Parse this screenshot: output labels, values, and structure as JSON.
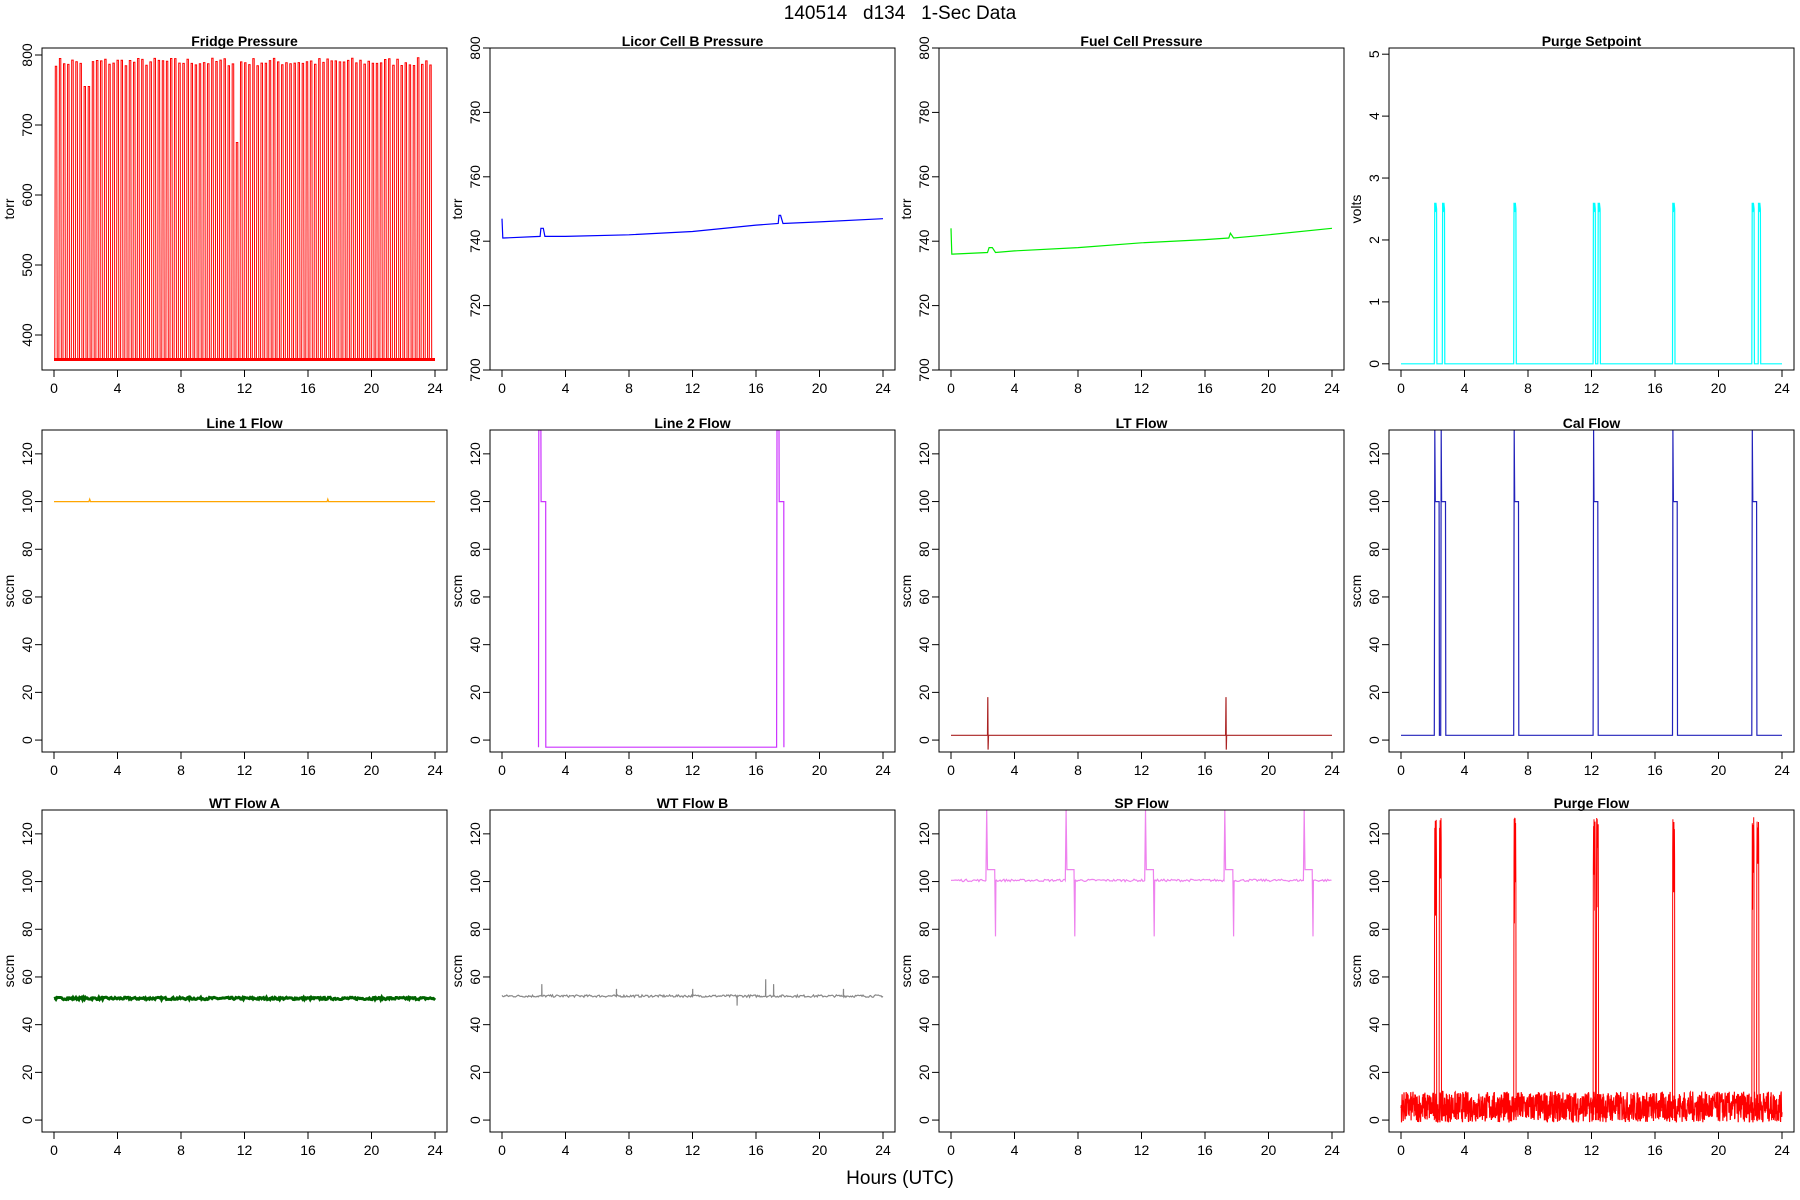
{
  "title": "140514   d134   1-Sec Data",
  "xlabel": "Hours (UTC)",
  "chart_data": [
    {
      "type": "line",
      "title": "Fridge Pressure",
      "ylabel": "torr",
      "xlim": [
        0,
        24
      ],
      "ylim": [
        350,
        810
      ],
      "xticks": [
        0,
        4,
        8,
        12,
        16,
        20,
        24
      ],
      "yticks": [
        400,
        500,
        600,
        700,
        800
      ],
      "color": "#ff0000",
      "series": [
        {
          "pattern": "fridge",
          "base": 365,
          "peak": 790
        }
      ]
    },
    {
      "type": "line",
      "title": "Licor Cell B Pressure",
      "ylabel": "torr",
      "xlim": [
        0,
        24
      ],
      "ylim": [
        700,
        800
      ],
      "xticks": [
        0,
        4,
        8,
        12,
        16,
        20,
        24
      ],
      "yticks": [
        700,
        720,
        740,
        760,
        780,
        800
      ],
      "color": "#0000ff",
      "series": [
        {
          "x": [
            0,
            0.05,
            0.1,
            2.4,
            2.45,
            2.5,
            2.6,
            2.7,
            4,
            8,
            12,
            16,
            17.4,
            17.45,
            17.55,
            17.7,
            20,
            24
          ],
          "y": [
            747,
            741,
            741,
            741.5,
            744,
            744,
            744,
            741.5,
            741.5,
            742,
            743,
            745,
            745.5,
            748,
            748,
            745.5,
            746,
            747
          ]
        }
      ]
    },
    {
      "type": "line",
      "title": "Fuel Cell Pressure",
      "ylabel": "torr",
      "xlim": [
        0,
        24
      ],
      "ylim": [
        700,
        800
      ],
      "xticks": [
        0,
        4,
        8,
        12,
        16,
        20,
        24
      ],
      "yticks": [
        700,
        720,
        740,
        760,
        780,
        800
      ],
      "color": "#00ee00",
      "series": [
        {
          "x": [
            0,
            0.05,
            0.1,
            2.3,
            2.4,
            2.6,
            2.8,
            4,
            8,
            12,
            16,
            17.5,
            17.6,
            17.8,
            20,
            24
          ],
          "y": [
            744,
            736,
            736,
            736.5,
            738,
            738,
            736.5,
            737,
            738,
            739.5,
            740.5,
            741,
            742.5,
            741,
            742,
            744
          ]
        }
      ]
    },
    {
      "type": "line",
      "title": "Purge Setpoint",
      "ylabel": "volts",
      "xlim": [
        0,
        24
      ],
      "ylim": [
        -0.1,
        5.1
      ],
      "xticks": [
        0,
        4,
        8,
        12,
        16,
        20,
        24
      ],
      "yticks": [
        0,
        1,
        2,
        3,
        4,
        5
      ],
      "color": "#00ffff",
      "series": [
        {
          "pattern": "purge",
          "base": 0,
          "peak": 2.55,
          "events": [
            2.1,
            2.6,
            7.1,
            12.1,
            12.4,
            17.1,
            22.1,
            22.5
          ]
        }
      ]
    },
    {
      "type": "line",
      "title": "Line 1 Flow",
      "ylabel": "sccm",
      "xlim": [
        0,
        24
      ],
      "ylim": [
        -5,
        130
      ],
      "xticks": [
        0,
        4,
        8,
        12,
        16,
        20,
        24
      ],
      "yticks": [
        0,
        20,
        40,
        60,
        80,
        100,
        120
      ],
      "color": "#ffa500",
      "series": [
        {
          "x": [
            0,
            2.2,
            2.25,
            2.3,
            17.2,
            17.25,
            17.3,
            24
          ],
          "y": [
            100,
            100,
            101,
            100,
            100,
            101,
            100,
            100
          ]
        }
      ]
    },
    {
      "type": "line",
      "title": "Line 2 Flow",
      "ylabel": "sccm",
      "xlim": [
        0,
        24
      ],
      "ylim": [
        -5,
        130
      ],
      "xticks": [
        0,
        4,
        8,
        12,
        16,
        20,
        24
      ],
      "yticks": [
        0,
        20,
        40,
        60,
        80,
        100,
        120
      ],
      "color": "#cc33ff",
      "series": [
        {
          "x": [
            2.3,
            2.32,
            2.45,
            2.46,
            2.75,
            2.76,
            17.3,
            17.32,
            17.45,
            17.46,
            17.75,
            17.76
          ],
          "y": [
            -3,
            130,
            130,
            100,
            100,
            -3,
            -3,
            130,
            130,
            100,
            100,
            -3
          ]
        }
      ]
    },
    {
      "type": "line",
      "title": "LT Flow",
      "ylabel": "sccm",
      "xlim": [
        0,
        24
      ],
      "ylim": [
        -5,
        130
      ],
      "xticks": [
        0,
        4,
        8,
        12,
        16,
        20,
        24
      ],
      "yticks": [
        0,
        20,
        40,
        60,
        80,
        100,
        120
      ],
      "color": "#aa2222",
      "series": [
        {
          "x": [
            0,
            2.3,
            2.32,
            2.34,
            2.36,
            17.3,
            17.32,
            17.34,
            17.36,
            24
          ],
          "y": [
            2,
            2,
            18,
            -4,
            2,
            2,
            18,
            -4,
            2,
            2
          ]
        }
      ]
    },
    {
      "type": "line",
      "title": "Cal Flow",
      "ylabel": "sccm",
      "xlim": [
        0,
        24
      ],
      "ylim": [
        -5,
        130
      ],
      "xticks": [
        0,
        4,
        8,
        12,
        16,
        20,
        24
      ],
      "yticks": [
        0,
        20,
        40,
        60,
        80,
        100,
        120
      ],
      "color": "#2222bb",
      "series": [
        {
          "pattern": "cal",
          "base": 2,
          "peak": 100,
          "events": [
            2.1,
            2.5,
            7.1,
            12.1,
            17.1,
            22.1
          ]
        }
      ]
    },
    {
      "type": "line",
      "title": "WT Flow A",
      "ylabel": "sccm",
      "xlim": [
        0,
        24
      ],
      "ylim": [
        -5,
        130
      ],
      "xticks": [
        0,
        4,
        8,
        12,
        16,
        20,
        24
      ],
      "yticks": [
        0,
        20,
        40,
        60,
        80,
        100,
        120
      ],
      "color": "#006400",
      "series": [
        {
          "pattern": "band",
          "center": 51,
          "amp": 1
        }
      ]
    },
    {
      "type": "line",
      "title": "WT Flow B",
      "ylabel": "sccm",
      "xlim": [
        0,
        24
      ],
      "ylim": [
        -5,
        130
      ],
      "xticks": [
        0,
        4,
        8,
        12,
        16,
        20,
        24
      ],
      "yticks": [
        0,
        20,
        40,
        60,
        80,
        100,
        120
      ],
      "color": "#888888",
      "series": [
        {
          "pattern": "noisy",
          "center": 52,
          "amp": 1,
          "spikes": [
            [
              2.5,
              57
            ],
            [
              7.2,
              55
            ],
            [
              12,
              55
            ],
            [
              14.8,
              48
            ],
            [
              16.6,
              59
            ],
            [
              17.1,
              57
            ],
            [
              21.5,
              55
            ]
          ]
        }
      ]
    },
    {
      "type": "line",
      "title": "SP Flow",
      "ylabel": "sccm",
      "xlim": [
        0,
        24
      ],
      "ylim": [
        -5,
        130
      ],
      "xticks": [
        0,
        4,
        8,
        12,
        16,
        20,
        24
      ],
      "yticks": [
        0,
        20,
        40,
        60,
        80,
        100,
        120
      ],
      "color": "#ee82ee",
      "series": [
        {
          "pattern": "sp",
          "base": 100.5,
          "step": 105,
          "events": [
            2.2,
            7.2,
            12.2,
            17.2,
            22.2
          ]
        }
      ]
    },
    {
      "type": "line",
      "title": "Purge Flow",
      "ylabel": "sccm",
      "xlim": [
        0,
        24
      ],
      "ylim": [
        -5,
        130
      ],
      "xticks": [
        0,
        4,
        8,
        12,
        16,
        20,
        24
      ],
      "yticks": [
        0,
        20,
        40,
        60,
        80,
        100,
        120
      ],
      "color": "#ff0000",
      "series": [
        {
          "pattern": "purgeflow",
          "low": -1,
          "high": 12,
          "peak": 125,
          "events": [
            2.1,
            2.4,
            7.1,
            12.1,
            12.3,
            17.1,
            22.1,
            22.4
          ]
        }
      ]
    }
  ]
}
